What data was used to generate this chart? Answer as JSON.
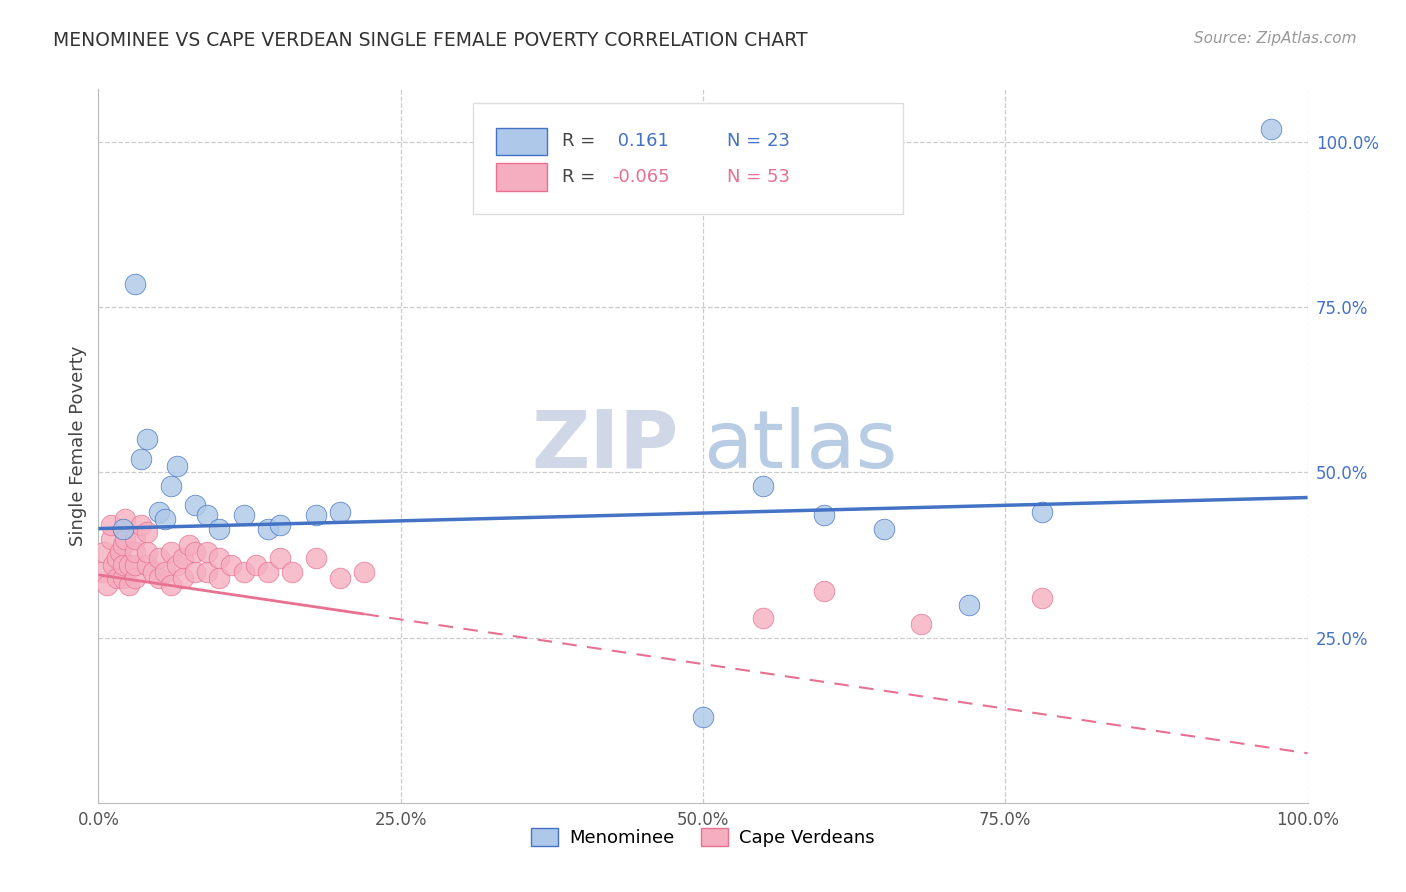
{
  "title": "MENOMINEE VS CAPE VERDEAN SINGLE FEMALE POVERTY CORRELATION CHART",
  "source_text": "Source: ZipAtlas.com",
  "ylabel": "Single Female Poverty",
  "watermark_zip": "ZIP",
  "watermark_atlas": "atlas",
  "menominee_R": 0.161,
  "menominee_N": 23,
  "capeverdean_R": -0.065,
  "capeverdean_N": 53,
  "menominee_color": "#adc8e8",
  "capeverdean_color": "#f5aec0",
  "menominee_line_color": "#4472C4",
  "capeverdean_line_color": "#e87090",
  "menominee_x": [
    0.02,
    0.03,
    0.035,
    0.04,
    0.05,
    0.055,
    0.06,
    0.065,
    0.08,
    0.09,
    0.1,
    0.12,
    0.14,
    0.15,
    0.18,
    0.2,
    0.5,
    0.55,
    0.6,
    0.65,
    0.72,
    0.78,
    0.97
  ],
  "menominee_y": [
    0.415,
    0.785,
    0.52,
    0.55,
    0.44,
    0.43,
    0.48,
    0.51,
    0.45,
    0.435,
    0.415,
    0.435,
    0.415,
    0.42,
    0.435,
    0.44,
    0.13,
    0.48,
    0.435,
    0.415,
    0.3,
    0.44,
    1.02
  ],
  "capeverdean_x": [
    0.003,
    0.005,
    0.007,
    0.01,
    0.01,
    0.012,
    0.015,
    0.015,
    0.018,
    0.02,
    0.02,
    0.02,
    0.022,
    0.022,
    0.025,
    0.025,
    0.03,
    0.03,
    0.03,
    0.03,
    0.035,
    0.04,
    0.04,
    0.04,
    0.045,
    0.05,
    0.05,
    0.055,
    0.06,
    0.06,
    0.065,
    0.07,
    0.07,
    0.075,
    0.08,
    0.08,
    0.09,
    0.09,
    0.1,
    0.1,
    0.11,
    0.12,
    0.13,
    0.14,
    0.15,
    0.16,
    0.18,
    0.2,
    0.22,
    0.55,
    0.6,
    0.68,
    0.78
  ],
  "capeverdean_y": [
    0.35,
    0.38,
    0.33,
    0.4,
    0.42,
    0.36,
    0.34,
    0.37,
    0.38,
    0.34,
    0.36,
    0.39,
    0.4,
    0.43,
    0.33,
    0.36,
    0.34,
    0.36,
    0.38,
    0.4,
    0.42,
    0.36,
    0.38,
    0.41,
    0.35,
    0.34,
    0.37,
    0.35,
    0.33,
    0.38,
    0.36,
    0.34,
    0.37,
    0.39,
    0.35,
    0.38,
    0.35,
    0.38,
    0.34,
    0.37,
    0.36,
    0.35,
    0.36,
    0.35,
    0.37,
    0.35,
    0.37,
    0.34,
    0.35,
    0.28,
    0.32,
    0.27,
    0.31
  ],
  "xlim": [
    0.0,
    1.0
  ],
  "ylim": [
    0.0,
    1.08
  ],
  "xtick_positions": [
    0.0,
    0.25,
    0.5,
    0.75,
    1.0
  ],
  "xtick_labels": [
    "0.0%",
    "25.0%",
    "50.0%",
    "75.0%",
    "100.0%"
  ],
  "ytick_positions": [
    0.25,
    0.5,
    0.75,
    1.0
  ],
  "ytick_labels": [
    "25.0%",
    "50.0%",
    "75.0%",
    "100.0%"
  ],
  "background_color": "#ffffff",
  "grid_color": "#cccccc"
}
